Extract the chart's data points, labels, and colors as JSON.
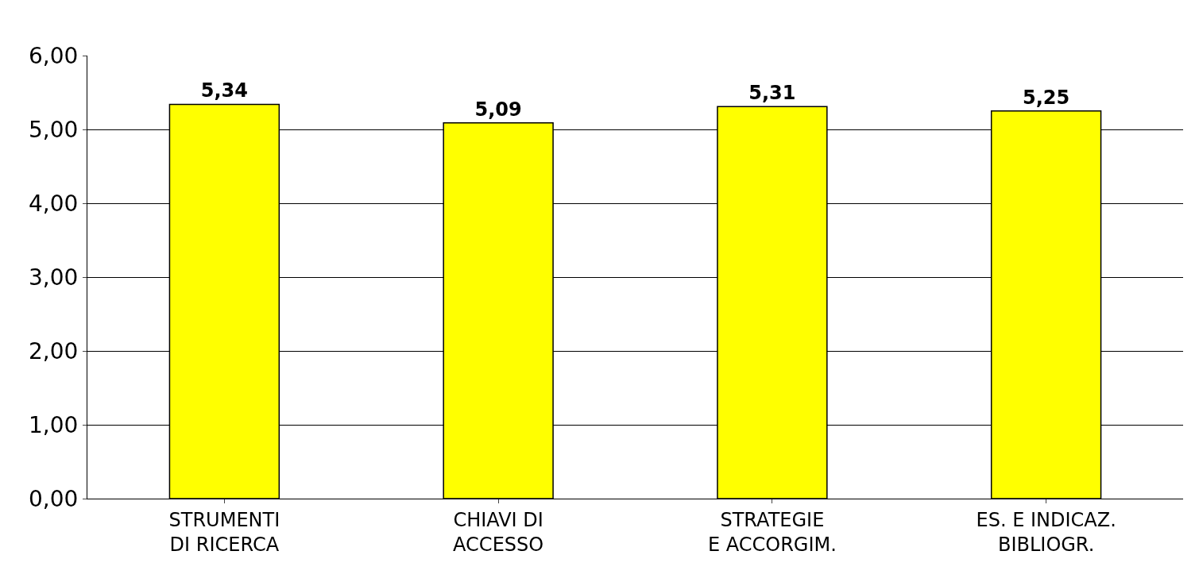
{
  "chart_data": {
    "type": "bar",
    "categories": [
      "STRUMENTI DI RICERCA",
      "CHIAVI DI ACCESSO",
      "STRATEGIE E ACCORGIM.",
      "ES. E INDICAZ. BIBLIOGR."
    ],
    "values": [
      5.34,
      5.09,
      5.31,
      5.25
    ],
    "value_labels": [
      "5,34",
      "5,09",
      "5,31",
      "5,25"
    ],
    "color": "#ffff00",
    "ylim": [
      0,
      6
    ],
    "yticks": [
      {
        "value": 0,
        "label": "0,00"
      },
      {
        "value": 1,
        "label": "1,00"
      },
      {
        "value": 2,
        "label": "2,00"
      },
      {
        "value": 3,
        "label": "3,00"
      },
      {
        "value": 4,
        "label": "4,00"
      },
      {
        "value": 5,
        "label": "5,00"
      },
      {
        "value": 6,
        "label": "6,00"
      }
    ],
    "grid": "y",
    "legend": false
  }
}
